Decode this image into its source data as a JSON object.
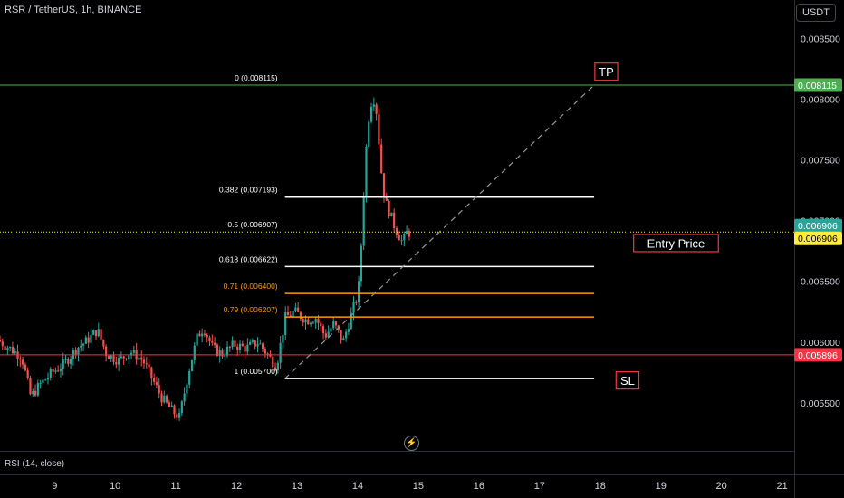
{
  "header": {
    "symbol_text": "RSR / TetherUS, 1h, BINANCE",
    "currency_button": "USDT"
  },
  "rsi_label": "RSI (14, close)",
  "colors": {
    "up": "#26a69a",
    "down": "#ef5350",
    "tp": "#4caf50",
    "sl": "#f23645",
    "entry": "#ffeb3b",
    "fib_white": "#ffffff",
    "fib_orange": "#ff9800",
    "label_border": "#f23645"
  },
  "chart_data": {
    "type": "candlestick",
    "title": "RSR / TetherUS, 1h, BINANCE",
    "y_axis": {
      "ticks": [
        "0.008500",
        "0.008000",
        "0.007500",
        "0.007000",
        "0.006500",
        "0.006000",
        "0.005500"
      ],
      "tick_values": [
        0.0085,
        0.008,
        0.0075,
        0.007,
        0.0065,
        0.006,
        0.0055
      ],
      "ylim": [
        0.005105,
        0.008815
      ]
    },
    "x_axis": {
      "ticks": [
        "9",
        "10",
        "11",
        "12",
        "13",
        "14",
        "15",
        "16",
        "17",
        "18",
        "19",
        "20",
        "21"
      ],
      "tick_days": [
        9,
        10,
        11,
        12,
        13,
        14,
        15,
        16,
        17,
        18,
        19,
        20,
        21
      ],
      "xlim_days": [
        8.1,
        21.2
      ]
    },
    "price_labels": [
      {
        "text": "0.008115",
        "value": 0.008115,
        "color": "#4caf50"
      },
      {
        "text": "0.006906",
        "value": 0.006906,
        "color": "#26a69a"
      },
      {
        "text": "0.006906",
        "value": 0.006906,
        "color": "#ffeb3b"
      },
      {
        "text": "0.005896",
        "value": 0.005896,
        "color": "#f23645"
      }
    ],
    "horizontal_lines": [
      {
        "name": "tp-line",
        "value": 0.008115,
        "color": "#4caf50"
      },
      {
        "name": "entry-line",
        "value": 0.006906,
        "color": "#ffeb3b",
        "dotted": true
      },
      {
        "name": "sl-line",
        "value": 0.005896,
        "color": "#f23645"
      }
    ],
    "fib_levels": [
      {
        "label": "0 (0.008115)",
        "value": 0.008115,
        "color": "#ffffff",
        "line": false
      },
      {
        "label": "0.382 (0.007193)",
        "value": 0.007193,
        "color": "#ffffff",
        "line": true
      },
      {
        "label": "0.5 (0.006907)",
        "value": 0.006907,
        "color": "#ffffff",
        "line": false
      },
      {
        "label": "0.618 (0.006622)",
        "value": 0.006622,
        "color": "#ffffff",
        "line": true
      },
      {
        "label": "0.71 (0.006400)",
        "value": 0.0064,
        "color": "#ff9800",
        "line": true
      },
      {
        "label": "0.79 (0.006207)",
        "value": 0.006207,
        "color": "#ff9800",
        "line": true
      },
      {
        "label": "1 (0.005700)",
        "value": 0.0057,
        "color": "#ffffff",
        "line": true
      }
    ],
    "fib_range_days": [
      12.8,
      17.9
    ],
    "trend_line": {
      "from": [
        12.8,
        0.0057
      ],
      "to": [
        17.9,
        0.008115
      ]
    },
    "annotations": [
      {
        "text": "TP",
        "day": 18.1,
        "value": 0.008225
      },
      {
        "text": "Entry Price",
        "day": 19.25,
        "value": 0.006815
      },
      {
        "text": "SL",
        "day": 18.45,
        "value": 0.005685
      }
    ],
    "series": [
      {
        "day": 8.1,
        "price": 0.00602
      },
      {
        "day": 8.3,
        "price": 0.00595
      },
      {
        "day": 8.5,
        "price": 0.00588
      },
      {
        "day": 8.65,
        "price": 0.00555
      },
      {
        "day": 8.8,
        "price": 0.00565
      },
      {
        "day": 9.0,
        "price": 0.00575
      },
      {
        "day": 9.2,
        "price": 0.00582
      },
      {
        "day": 9.4,
        "price": 0.00595
      },
      {
        "day": 9.55,
        "price": 0.006
      },
      {
        "day": 9.75,
        "price": 0.0061
      },
      {
        "day": 9.9,
        "price": 0.0059
      },
      {
        "day": 10.1,
        "price": 0.00585
      },
      {
        "day": 10.3,
        "price": 0.00592
      },
      {
        "day": 10.5,
        "price": 0.00585
      },
      {
        "day": 10.65,
        "price": 0.0057
      },
      {
        "day": 10.8,
        "price": 0.00555
      },
      {
        "day": 10.95,
        "price": 0.00545
      },
      {
        "day": 11.1,
        "price": 0.00538
      },
      {
        "day": 11.25,
        "price": 0.00575
      },
      {
        "day": 11.4,
        "price": 0.00605
      },
      {
        "day": 11.5,
        "price": 0.00612
      },
      {
        "day": 11.65,
        "price": 0.00595
      },
      {
        "day": 11.8,
        "price": 0.0059
      },
      {
        "day": 12.0,
        "price": 0.00598
      },
      {
        "day": 12.2,
        "price": 0.00595
      },
      {
        "day": 12.4,
        "price": 0.006
      },
      {
        "day": 12.55,
        "price": 0.0059
      },
      {
        "day": 12.7,
        "price": 0.0058
      },
      {
        "day": 12.85,
        "price": 0.0062
      },
      {
        "day": 13.0,
        "price": 0.00625
      },
      {
        "day": 13.2,
        "price": 0.00618
      },
      {
        "day": 13.35,
        "price": 0.0062
      },
      {
        "day": 13.5,
        "price": 0.00605
      },
      {
        "day": 13.65,
        "price": 0.00615
      },
      {
        "day": 13.8,
        "price": 0.006
      },
      {
        "day": 13.95,
        "price": 0.00625
      },
      {
        "day": 14.05,
        "price": 0.0064
      },
      {
        "day": 14.1,
        "price": 0.0068
      },
      {
        "day": 14.15,
        "price": 0.0073
      },
      {
        "day": 14.2,
        "price": 0.00775
      },
      {
        "day": 14.25,
        "price": 0.00795
      },
      {
        "day": 14.3,
        "price": 0.00802
      },
      {
        "day": 14.35,
        "price": 0.0079
      },
      {
        "day": 14.4,
        "price": 0.0076
      },
      {
        "day": 14.45,
        "price": 0.0073
      },
      {
        "day": 14.5,
        "price": 0.00715
      },
      {
        "day": 14.58,
        "price": 0.00705
      },
      {
        "day": 14.65,
        "price": 0.00695
      },
      {
        "day": 14.72,
        "price": 0.00688
      },
      {
        "day": 14.78,
        "price": 0.00682
      },
      {
        "day": 14.85,
        "price": 0.0069
      }
    ]
  }
}
